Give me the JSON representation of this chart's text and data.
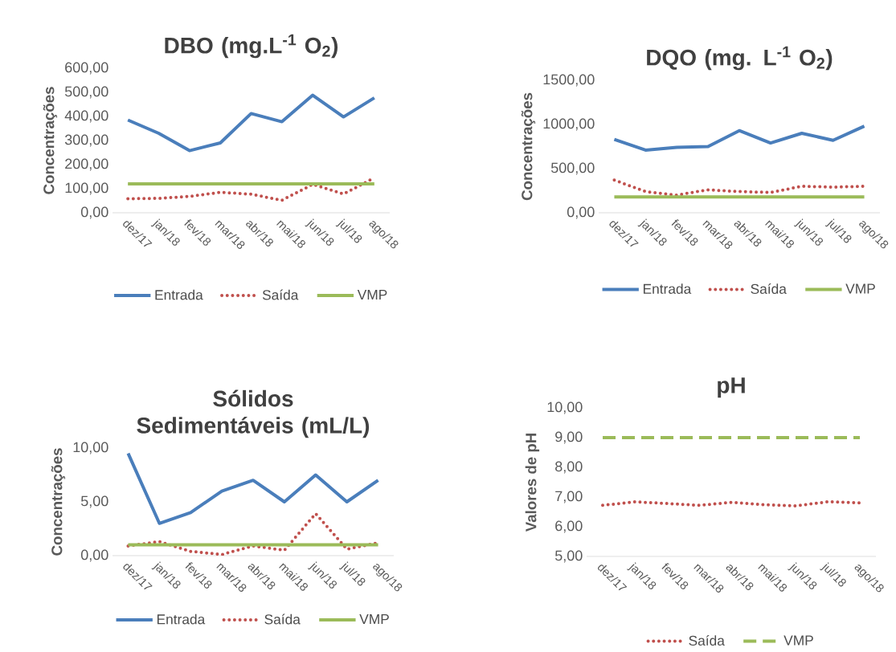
{
  "chart_data": [
    {
      "type": "line",
      "title": "DBO (mg.L$^{-1}$ O$_{2}$)",
      "ylabel": "Concentrações",
      "categories": [
        "dez/17",
        "jan/18",
        "fev/18",
        "mar/18",
        "abr/18",
        "mai/18",
        "jun/18",
        "jul/18",
        "ago/18"
      ],
      "series": [
        {
          "name": "Entrada",
          "color": "#4a7ebb",
          "line_style": "solid",
          "values": [
            385,
            330,
            258,
            290,
            412,
            378,
            488,
            398,
            477
          ]
        },
        {
          "name": "Saída",
          "color": "#c0504d",
          "line_style": "dotted",
          "values": [
            58,
            60,
            68,
            85,
            77,
            52,
            118,
            78,
            145
          ]
        },
        {
          "name": "VMP",
          "color": "#9bbb59",
          "line_style": "solid",
          "values": [
            120,
            120,
            120,
            120,
            120,
            120,
            120,
            120,
            120
          ]
        }
      ],
      "ylim": [
        0,
        600
      ],
      "yticks": [
        {
          "value": 0,
          "label": "0,00"
        },
        {
          "value": 100,
          "label": "100,00"
        },
        {
          "value": 200,
          "label": "200,00"
        },
        {
          "value": 300,
          "label": "300,00"
        },
        {
          "value": 400,
          "label": "400,00"
        },
        {
          "value": 500,
          "label": "500,00"
        },
        {
          "value": 600,
          "label": "600,00"
        }
      ],
      "legend": "bottom"
    },
    {
      "type": "line",
      "title": "DQO (mg. L$^{-1}$ O$_{2}$)",
      "ylabel": "Concentrações",
      "categories": [
        "dez/17",
        "jan/18",
        "fev/18",
        "mar/18",
        "abr/18",
        "mai/18",
        "jun/18",
        "jul/18",
        "ago/18"
      ],
      "series": [
        {
          "name": "Entrada",
          "color": "#4a7ebb",
          "line_style": "solid",
          "values": [
            830,
            710,
            740,
            750,
            930,
            790,
            900,
            820,
            980
          ]
        },
        {
          "name": "Saída",
          "color": "#c0504d",
          "line_style": "dotted",
          "values": [
            370,
            240,
            200,
            260,
            240,
            230,
            300,
            290,
            300
          ]
        },
        {
          "name": "VMP",
          "color": "#9bbb59",
          "line_style": "solid",
          "values": [
            180,
            180,
            180,
            180,
            180,
            180,
            180,
            180,
            180
          ]
        }
      ],
      "ylim": [
        0,
        1500
      ],
      "yticks": [
        {
          "value": 0,
          "label": "0,00"
        },
        {
          "value": 500,
          "label": "500,00"
        },
        {
          "value": 1000,
          "label": "1000,00"
        },
        {
          "value": 1500,
          "label": "1500,00"
        }
      ],
      "legend": "bottom"
    },
    {
      "type": "line",
      "title": "Sólidos Sedimentáveis (mL/L)",
      "ylabel": "Concentrações",
      "categories": [
        "dez/17",
        "jan/18",
        "fev/18",
        "mar/18",
        "abr/18",
        "mai/18",
        "jun/18",
        "jul/18",
        "ago/18"
      ],
      "series": [
        {
          "name": "Entrada",
          "color": "#4a7ebb",
          "line_style": "solid",
          "values": [
            9.5,
            3.0,
            4.0,
            6.0,
            7.0,
            5.0,
            7.5,
            5.0,
            7.0
          ]
        },
        {
          "name": "Saída",
          "color": "#c0504d",
          "line_style": "dotted",
          "values": [
            0.9,
            1.3,
            0.4,
            0.1,
            0.9,
            0.5,
            3.9,
            0.6,
            1.2
          ]
        },
        {
          "name": "VMP",
          "color": "#9bbb59",
          "line_style": "solid",
          "values": [
            1,
            1,
            1,
            1,
            1,
            1,
            1,
            1,
            1
          ]
        }
      ],
      "ylim": [
        0,
        10
      ],
      "yticks": [
        {
          "value": 0,
          "label": "0,00"
        },
        {
          "value": 5,
          "label": "5,00"
        },
        {
          "value": 10,
          "label": "10,00"
        }
      ],
      "legend": "bottom"
    },
    {
      "type": "line",
      "title": "pH",
      "ylabel": "Valores de pH",
      "categories": [
        "dez/17",
        "jan/18",
        "fev/18",
        "mar/18",
        "abr/18",
        "mai/18",
        "jun/18",
        "jul/18",
        "ago/18"
      ],
      "series": [
        {
          "name": "Saída",
          "color": "#c0504d",
          "line_style": "dotted",
          "values": [
            6.72,
            6.84,
            6.78,
            6.72,
            6.82,
            6.74,
            6.7,
            6.84,
            6.8
          ]
        },
        {
          "name": "VMP",
          "color": "#9bbb59",
          "line_style": "dashed",
          "values": [
            9,
            9,
            9,
            9,
            9,
            9,
            9,
            9,
            9
          ]
        }
      ],
      "ylim": [
        5,
        10
      ],
      "yticks": [
        {
          "value": 5,
          "label": "5,00"
        },
        {
          "value": 6,
          "label": "6,00"
        },
        {
          "value": 7,
          "label": "7,00"
        },
        {
          "value": 8,
          "label": "8,00"
        },
        {
          "value": 9,
          "label": "9,00"
        },
        {
          "value": 10,
          "label": "10,00"
        }
      ],
      "legend": "bottom"
    }
  ]
}
